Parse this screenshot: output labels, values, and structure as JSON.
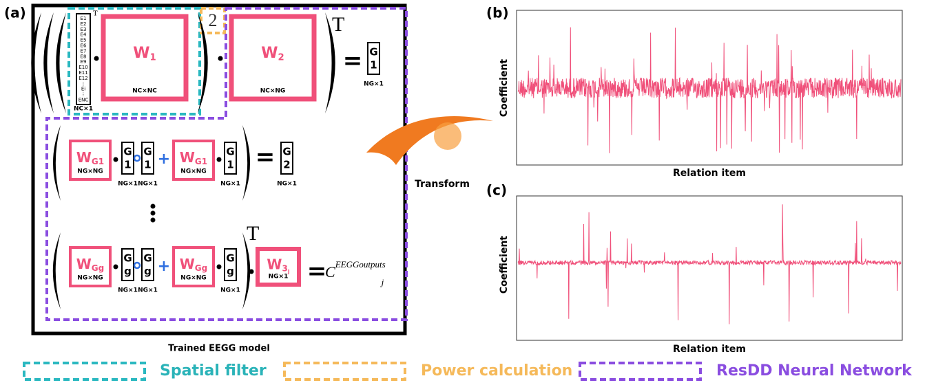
{
  "panels": {
    "a": "(a)",
    "b": "(b)",
    "c": "(c)"
  },
  "model_label": "Trained EEGG model",
  "transform_label": "Transform",
  "plots": {
    "y_label": "Coefficient",
    "x_label": "Relation item"
  },
  "electrodes": {
    "items": [
      "E1",
      "E2",
      "E3",
      "E4",
      "E5",
      "E6",
      "E7",
      "E8",
      "E9",
      "E10",
      "E11",
      "E12",
      "⋮",
      "Ei",
      "⋮",
      "ENC"
    ],
    "dim": "NC×1"
  },
  "equation": {
    "transpose": "T",
    "power": "2",
    "w1": {
      "base": "W",
      "sub": "1",
      "dim": "NC×NC"
    },
    "w2": {
      "base": "W",
      "sub": "2",
      "dim": "NC×NG"
    },
    "wg1": {
      "base": "W",
      "sub": "G1",
      "dim": "NG×NG"
    },
    "wgg": {
      "base": "W",
      "sub": "Gg",
      "dim": "NG×NG"
    },
    "w3j": {
      "base": "W",
      "sub": "3",
      "subsub": "j",
      "dim": "NG×1"
    },
    "g1": {
      "top": "G",
      "bottom": "1",
      "dim": "NG×1"
    },
    "g2": {
      "top": "G",
      "bottom": "2",
      "dim": "NG×1"
    },
    "gg": {
      "top": "G",
      "bottom": "g",
      "dim": "NG×1"
    },
    "output": {
      "base": "C",
      "sup": "EEGGoutputs",
      "sub": "j"
    }
  },
  "legend": {
    "spatial": "Spatial filter",
    "power": "Power calculation",
    "resdd": "ResDD Neural Network"
  }
}
